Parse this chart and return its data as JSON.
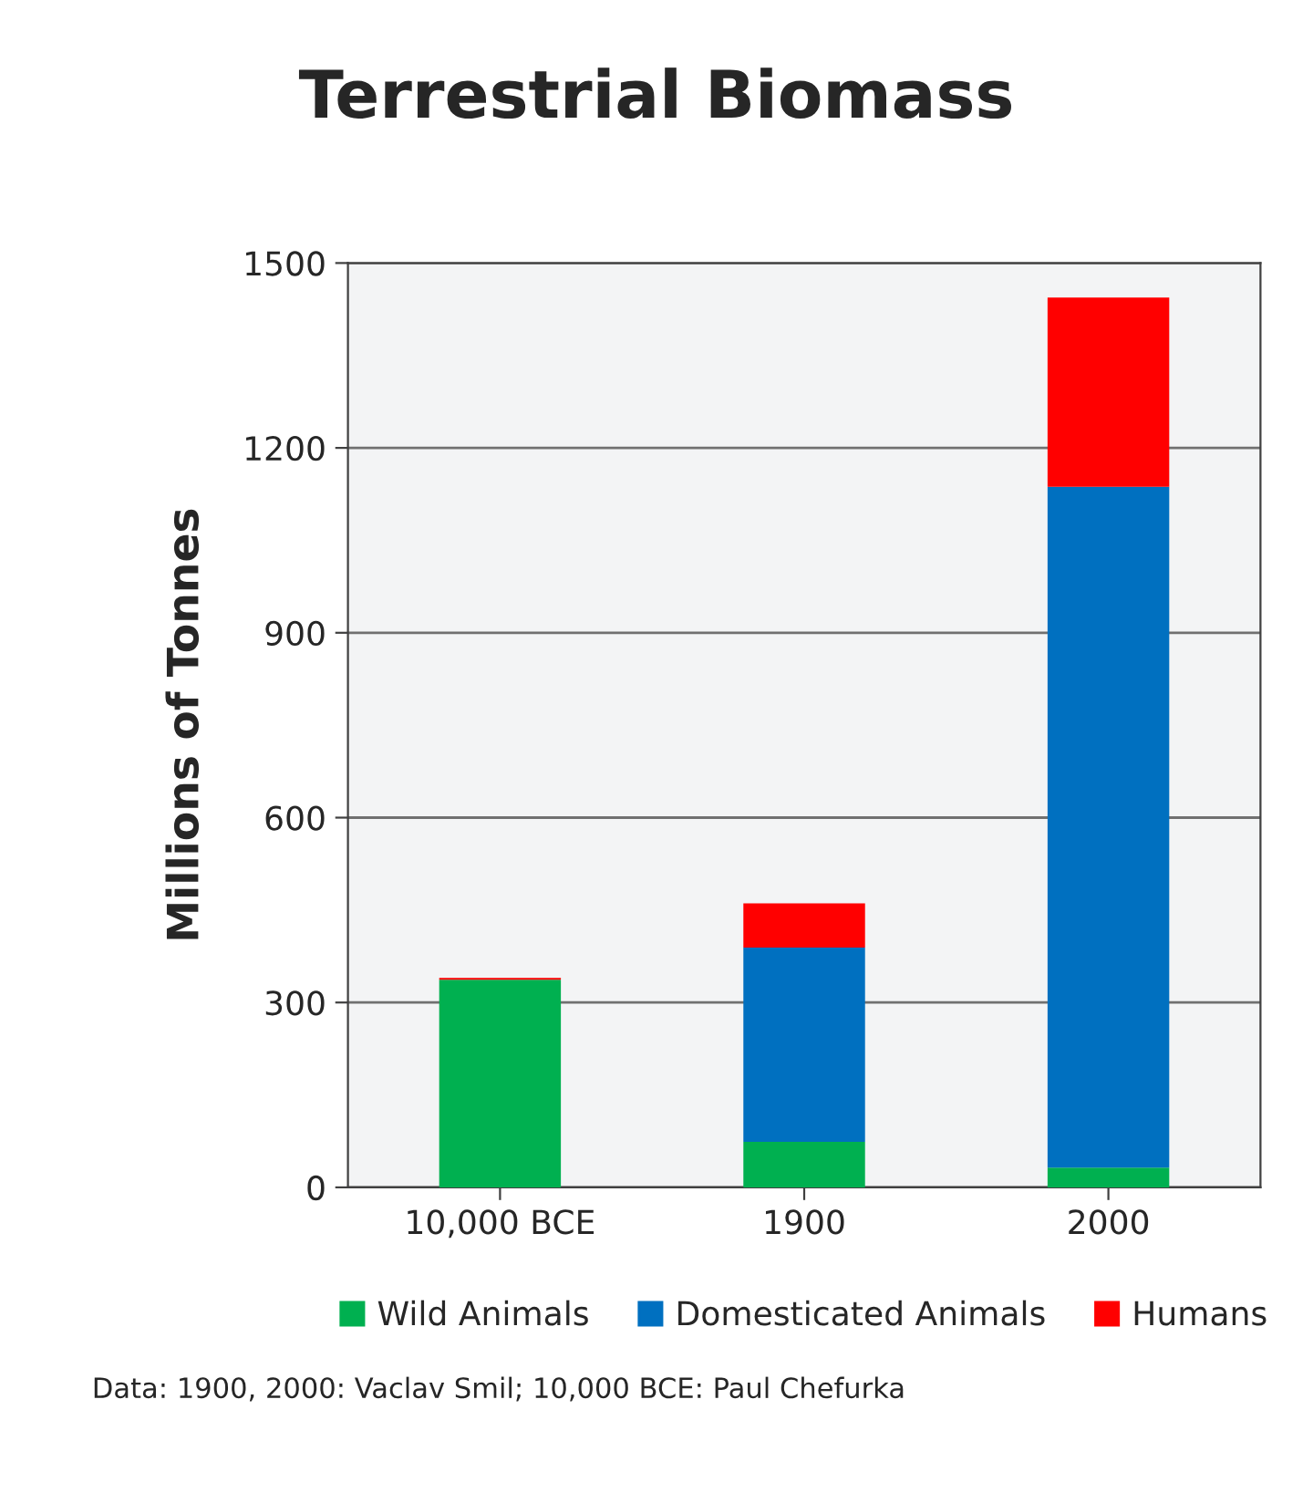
{
  "chart_data": {
    "type": "bar",
    "title": "Terrestrial Biomass",
    "ylabel": "Millions of Tonnes",
    "categories": [
      "10,000 BCE",
      "1900",
      "2000"
    ],
    "series": [
      {
        "name": "Wild Animals",
        "color": "#00b050",
        "values": [
          337,
          74,
          32
        ]
      },
      {
        "name": "Domesticated Animals",
        "color": "#0070c0",
        "values": [
          0,
          315,
          1105
        ]
      },
      {
        "name": "Humans",
        "color": "#ff0000",
        "values": [
          3,
          72,
          307
        ]
      }
    ],
    "stacked": true,
    "ylim": [
      0,
      1500
    ],
    "yticks": [
      0,
      300,
      600,
      900,
      1200,
      1500
    ],
    "grid": "y",
    "legend": "bottom",
    "annotations": [
      "Data: 1900, 2000: Vaclav Smil; 10,000 BCE: Paul Chefurka"
    ]
  }
}
